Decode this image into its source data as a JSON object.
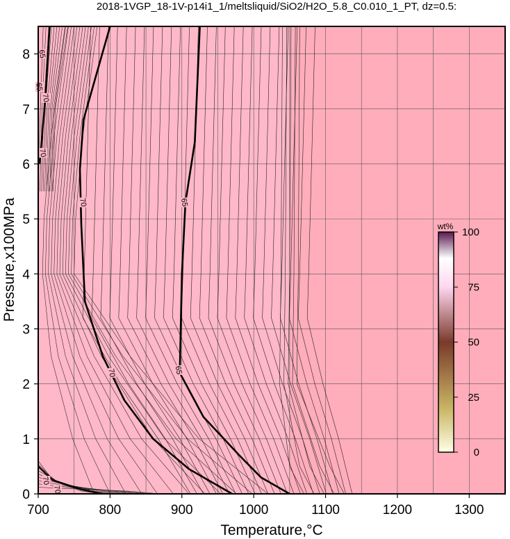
{
  "chart_data": {
    "type": "contour",
    "title": "2018-1VGP_18-1V-p14i1_1/meltsliquid/SiO2/H2O_5.8_C0.010_1_PT, dz=0.5:",
    "xlabel": "Temperature,°C",
    "ylabel": "Pressure,x100MPa",
    "xlim": [
      700,
      1350
    ],
    "ylim": [
      0,
      8.5
    ],
    "x_ticks": [
      700,
      800,
      900,
      1000,
      1100,
      1200,
      1300
    ],
    "y_ticks": [
      0,
      1,
      2,
      3,
      4,
      5,
      6,
      7,
      8
    ],
    "grid": true,
    "fill_color": "#ffadbb",
    "region_boundary_x": 1050,
    "colorbar": {
      "label": "wt%",
      "ticks": [
        0,
        25,
        50,
        75,
        100
      ],
      "range": [
        0,
        100
      ],
      "colors": [
        "#ffffe6",
        "#c8b464",
        "#7a3a2a",
        "#ffd6f0",
        "#ffffff",
        "#5a1a50"
      ]
    },
    "contour_labels": [
      {
        "value": "65",
        "x": 706,
        "y": 8.0
      },
      {
        "value": "65",
        "x": 702,
        "y": 7.4
      },
      {
        "value": "70",
        "x": 711,
        "y": 7.2
      },
      {
        "value": "70",
        "x": 707,
        "y": 6.2
      },
      {
        "value": "70",
        "x": 763,
        "y": 5.3
      },
      {
        "value": "65",
        "x": 904,
        "y": 5.3
      },
      {
        "value": "70",
        "x": 803,
        "y": 2.2
      },
      {
        "value": "65",
        "x": 896,
        "y": 2.25
      },
      {
        "value": "70",
        "x": 711,
        "y": 0.24
      },
      {
        "value": "70",
        "x": 727,
        "y": 0.08
      }
    ],
    "bold_contours": [
      {
        "level": 70,
        "points": [
          [
            758,
            5.9
          ],
          [
            760,
            4.9
          ],
          [
            765,
            3.5
          ],
          [
            790,
            2.5
          ],
          [
            820,
            1.7
          ],
          [
            860,
            1.0
          ],
          [
            910,
            0.45
          ],
          [
            970,
            0.0
          ]
        ],
        "extension": [
          [
            758,
            5.9
          ],
          [
            763,
            6.8
          ],
          [
            800,
            8.5
          ]
        ]
      },
      {
        "level": 65,
        "points": [
          [
            925,
            8.5
          ],
          [
            918,
            6.4
          ],
          [
            905,
            5.3
          ],
          [
            900,
            4.0
          ],
          [
            897,
            2.2
          ],
          [
            930,
            1.4
          ],
          [
            980,
            0.7
          ],
          [
            1010,
            0.3
          ],
          [
            1050,
            0.0
          ]
        ]
      }
    ]
  }
}
